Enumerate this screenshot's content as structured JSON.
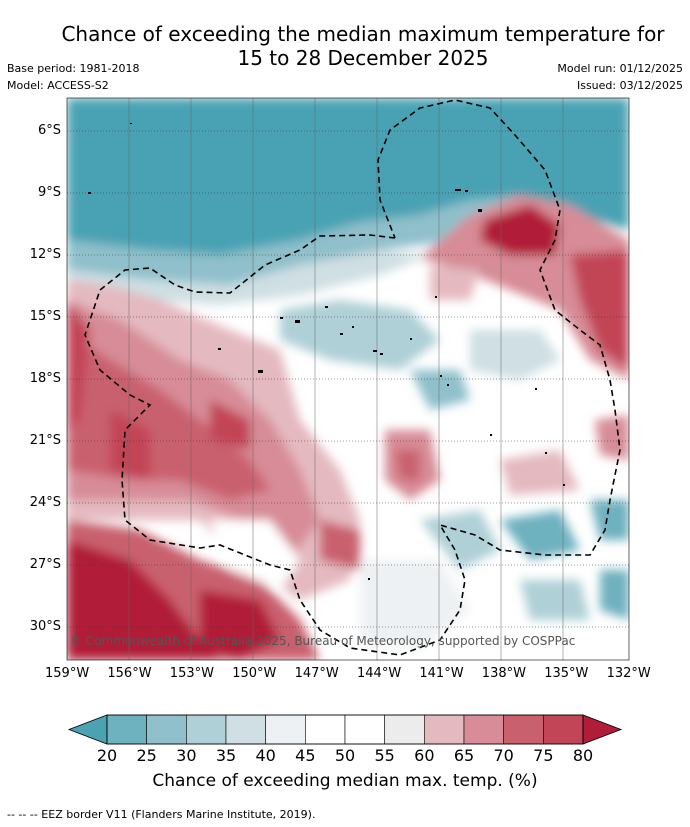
{
  "title": {
    "line1": "Chance of exceeding the median maximum temperature for",
    "line2": "15 to 28 December 2025"
  },
  "meta": {
    "base_period": "Base period: 1981-2018",
    "model": "Model: ACCESS-S2",
    "model_run": "Model run: 01/12/2025",
    "issued": "Issued: 03/12/2025"
  },
  "copyright": "© Commonwealth of Australia 2025, Bureau of Meteorology, supported by COSPPac",
  "lat_labels": [
    "6°S",
    "9°S",
    "12°S",
    "15°S",
    "18°S",
    "21°S",
    "24°S",
    "27°S",
    "30°S"
  ],
  "lon_labels": [
    "159°W",
    "156°W",
    "153°W",
    "150°W",
    "147°W",
    "144°W",
    "141°W",
    "138°W",
    "135°W",
    "132°W"
  ],
  "colorbar": {
    "ticks": [
      "20",
      "25",
      "30",
      "35",
      "40",
      "45",
      "50",
      "55",
      "60",
      "65",
      "70",
      "75",
      "80"
    ],
    "colors": [
      "#4aa2b3",
      "#6eb1bf",
      "#8fc0cb",
      "#afd0d7",
      "#cfdfe3",
      "#eef1f3",
      "#ffffff",
      "#ffffff",
      "#ececec",
      "#e4b9c0",
      "#d78c97",
      "#c9606e",
      "#c24557",
      "#b11d38"
    ],
    "label": "Chance of exceeding median max. temp. (%)"
  },
  "footer": "--  --  -- EEZ border V11 (Flanders Marine Institute, 2019)."
}
